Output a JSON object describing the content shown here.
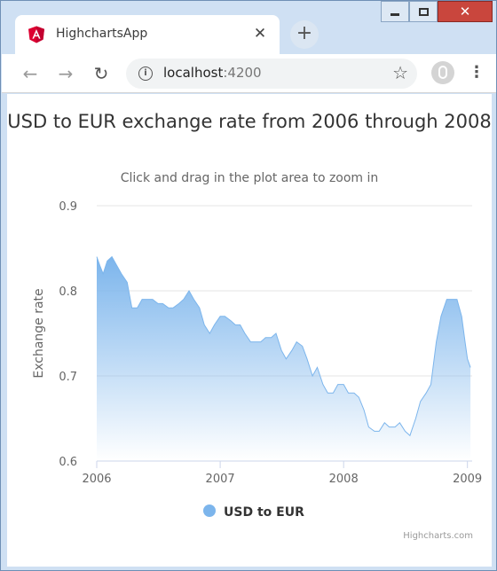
{
  "browser": {
    "tab_title": "HighchartsApp",
    "tab_close": "✕",
    "new_tab": "+",
    "url_host": "localhost",
    "url_port": ":4200",
    "window_close": "✕"
  },
  "icons": {
    "tab_logo": "angular-logo-icon",
    "back": "arrow-left-icon",
    "forward": "arrow-right-icon",
    "reload": "reload-icon",
    "info": "info-icon",
    "bookmark": "star-icon",
    "profile": "profile-icon",
    "menu": "kebab-menu-icon"
  },
  "colors": {
    "series": "#7cb5ec",
    "accent_logo": "#dd0031"
  },
  "chart": {
    "title": "USD to EUR exchange rate from 2006 through 2008",
    "subtitle": "Click and drag in the plot area to zoom in",
    "credits": "Highcharts.com"
  },
  "chart_data": {
    "type": "area",
    "title": "USD to EUR exchange rate from 2006 through 2008",
    "subtitle": "Click and drag in the plot area to zoom in",
    "xlabel": "",
    "ylabel": "Exchange rate",
    "xlim": [
      "2006-01-01",
      "2009-01-15"
    ],
    "ylim": [
      0.6,
      0.9
    ],
    "y_ticks": [
      0.6,
      0.7,
      0.8,
      0.9
    ],
    "x_ticks": [
      "2006",
      "2007",
      "2008",
      "2009"
    ],
    "grid": "horizontal",
    "legend": "bottom-center",
    "series": [
      {
        "name": "USD to EUR",
        "x": [
          "2006-01-01",
          "2006-01-10",
          "2006-01-20",
          "2006-02-01",
          "2006-02-15",
          "2006-03-01",
          "2006-03-15",
          "2006-04-01",
          "2006-04-15",
          "2006-05-01",
          "2006-05-15",
          "2006-06-01",
          "2006-06-15",
          "2006-07-01",
          "2006-07-15",
          "2006-08-01",
          "2006-08-15",
          "2006-09-01",
          "2006-09-15",
          "2006-10-01",
          "2006-10-15",
          "2006-11-01",
          "2006-11-15",
          "2006-12-01",
          "2006-12-15",
          "2007-01-01",
          "2007-01-15",
          "2007-02-01",
          "2007-02-15",
          "2007-03-01",
          "2007-03-15",
          "2007-04-01",
          "2007-04-15",
          "2007-05-01",
          "2007-05-15",
          "2007-06-01",
          "2007-06-15",
          "2007-07-01",
          "2007-07-15",
          "2007-08-01",
          "2007-08-15",
          "2007-09-01",
          "2007-09-15",
          "2007-10-01",
          "2007-10-15",
          "2007-11-01",
          "2007-11-15",
          "2007-12-01",
          "2007-12-15",
          "2008-01-01",
          "2008-01-15",
          "2008-02-01",
          "2008-02-15",
          "2008-03-01",
          "2008-03-15",
          "2008-04-01",
          "2008-04-15",
          "2008-05-01",
          "2008-05-15",
          "2008-06-01",
          "2008-06-15",
          "2008-07-01",
          "2008-07-15",
          "2008-08-01",
          "2008-08-15",
          "2008-09-01",
          "2008-09-15",
          "2008-10-01",
          "2008-10-15",
          "2008-11-01",
          "2008-11-15",
          "2008-12-01",
          "2008-12-15",
          "2008-12-25",
          "2009-01-01",
          "2009-01-10"
        ],
        "values": [
          0.84,
          0.83,
          0.82,
          0.835,
          0.84,
          0.83,
          0.82,
          0.81,
          0.78,
          0.78,
          0.79,
          0.79,
          0.79,
          0.785,
          0.785,
          0.78,
          0.78,
          0.785,
          0.79,
          0.8,
          0.79,
          0.78,
          0.76,
          0.75,
          0.76,
          0.77,
          0.77,
          0.765,
          0.76,
          0.76,
          0.75,
          0.74,
          0.74,
          0.74,
          0.745,
          0.745,
          0.75,
          0.73,
          0.72,
          0.73,
          0.74,
          0.735,
          0.72,
          0.7,
          0.71,
          0.69,
          0.68,
          0.68,
          0.69,
          0.69,
          0.68,
          0.68,
          0.675,
          0.66,
          0.64,
          0.635,
          0.635,
          0.645,
          0.64,
          0.64,
          0.645,
          0.635,
          0.63,
          0.65,
          0.67,
          0.68,
          0.69,
          0.74,
          0.77,
          0.79,
          0.79,
          0.79,
          0.77,
          0.74,
          0.72,
          0.71
        ]
      }
    ]
  }
}
